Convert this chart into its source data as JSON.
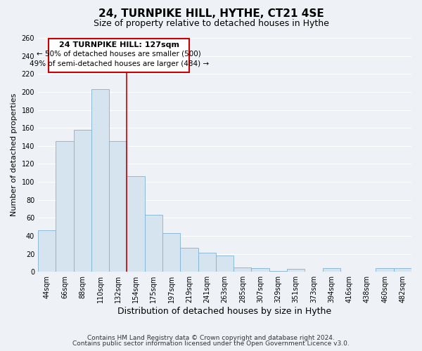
{
  "title": "24, TURNPIKE HILL, HYTHE, CT21 4SE",
  "subtitle": "Size of property relative to detached houses in Hythe",
  "xlabel": "Distribution of detached houses by size in Hythe",
  "ylabel": "Number of detached properties",
  "categories": [
    "44sqm",
    "66sqm",
    "88sqm",
    "110sqm",
    "132sqm",
    "154sqm",
    "175sqm",
    "197sqm",
    "219sqm",
    "241sqm",
    "263sqm",
    "285sqm",
    "307sqm",
    "329sqm",
    "351sqm",
    "373sqm",
    "394sqm",
    "416sqm",
    "438sqm",
    "460sqm",
    "482sqm"
  ],
  "values": [
    46,
    145,
    158,
    203,
    145,
    106,
    63,
    43,
    27,
    21,
    18,
    5,
    4,
    1,
    3,
    0,
    4,
    0,
    0,
    4,
    4
  ],
  "bar_color": "#d6e4f0",
  "bar_edge_color": "#7fb3d3",
  "highlight_index": 4,
  "highlight_line_color": "#cc0000",
  "ylim": [
    0,
    260
  ],
  "yticks": [
    0,
    20,
    40,
    60,
    80,
    100,
    120,
    140,
    160,
    180,
    200,
    220,
    240,
    260
  ],
  "annotation_title": "24 TURNPIKE HILL: 127sqm",
  "annotation_line1": "← 50% of detached houses are smaller (500)",
  "annotation_line2": "49% of semi-detached houses are larger (484) →",
  "annotation_box_color": "#ffffff",
  "annotation_box_edge": "#cc0000",
  "footer1": "Contains HM Land Registry data © Crown copyright and database right 2024.",
  "footer2": "Contains public sector information licensed under the Open Government Licence v3.0.",
  "background_color": "#eef2f7",
  "plot_bg_color": "#eef2f7",
  "grid_color": "#ffffff",
  "title_fontsize": 11,
  "subtitle_fontsize": 9,
  "xlabel_fontsize": 9,
  "ylabel_fontsize": 8,
  "tick_fontsize": 7,
  "annotation_title_fontsize": 8,
  "annotation_text_fontsize": 7.5,
  "footer_fontsize": 6.5
}
